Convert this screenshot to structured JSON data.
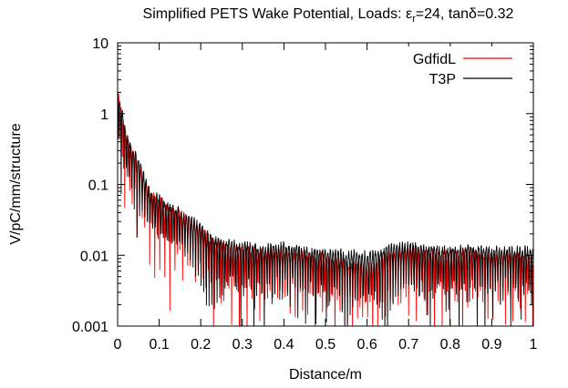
{
  "chart_data": {
    "type": "line",
    "title_parts": {
      "prefix": "Simplified PETS Wake Potential, Loads: ε",
      "eps_sub": "r",
      "eps_value": "=24, tanδ=0.32"
    },
    "xlabel": "Distance/m",
    "ylabel": "V/pC/mm/structure",
    "xlim": [
      0,
      1
    ],
    "ylim": [
      0.001,
      10
    ],
    "yscale": "log",
    "x_ticks": [
      {
        "v": 0,
        "label": "0"
      },
      {
        "v": 0.1,
        "label": "0.1"
      },
      {
        "v": 0.2,
        "label": "0.2"
      },
      {
        "v": 0.3,
        "label": "0.3"
      },
      {
        "v": 0.4,
        "label": "0.4"
      },
      {
        "v": 0.5,
        "label": "0.5"
      },
      {
        "v": 0.6,
        "label": "0.6"
      },
      {
        "v": 0.7,
        "label": "0.7"
      },
      {
        "v": 0.8,
        "label": "0.8"
      },
      {
        "v": 0.9,
        "label": "0.9"
      },
      {
        "v": 1,
        "label": "1"
      }
    ],
    "y_ticks": [
      {
        "v": 0.001,
        "label": "0.001"
      },
      {
        "v": 0.01,
        "label": "0.01"
      },
      {
        "v": 0.1,
        "label": "0.1"
      },
      {
        "v": 1,
        "label": "1"
      },
      {
        "v": 10,
        "label": "10"
      }
    ],
    "legend_position": "top-right",
    "series": [
      {
        "name": "GdfidL",
        "color": "#ff0000",
        "envelope": [
          [
            0.0,
            2.2
          ],
          [
            0.01,
            1.2
          ],
          [
            0.02,
            0.55
          ],
          [
            0.03,
            0.38
          ],
          [
            0.04,
            0.32
          ],
          [
            0.05,
            0.22
          ],
          [
            0.06,
            0.16
          ],
          [
            0.07,
            0.11
          ],
          [
            0.08,
            0.085
          ],
          [
            0.1,
            0.07
          ],
          [
            0.12,
            0.055
          ],
          [
            0.15,
            0.045
          ],
          [
            0.18,
            0.035
          ],
          [
            0.2,
            0.028
          ],
          [
            0.22,
            0.02
          ],
          [
            0.25,
            0.016
          ],
          [
            0.3,
            0.014
          ],
          [
            0.35,
            0.013
          ],
          [
            0.4,
            0.013
          ],
          [
            0.45,
            0.012
          ],
          [
            0.5,
            0.011
          ],
          [
            0.55,
            0.009
          ],
          [
            0.6,
            0.008
          ],
          [
            0.65,
            0.012
          ],
          [
            0.7,
            0.014
          ],
          [
            0.75,
            0.013
          ],
          [
            0.8,
            0.012
          ],
          [
            0.85,
            0.013
          ],
          [
            0.9,
            0.012
          ],
          [
            0.95,
            0.012
          ],
          [
            1.0,
            0.011
          ]
        ]
      },
      {
        "name": "T3P",
        "color": "#000000",
        "envelope": [
          [
            0.0,
            2.4
          ],
          [
            0.01,
            1.3
          ],
          [
            0.02,
            0.6
          ],
          [
            0.03,
            0.4
          ],
          [
            0.04,
            0.35
          ],
          [
            0.05,
            0.25
          ],
          [
            0.06,
            0.18
          ],
          [
            0.07,
            0.12
          ],
          [
            0.08,
            0.09
          ],
          [
            0.1,
            0.075
          ],
          [
            0.12,
            0.06
          ],
          [
            0.15,
            0.048
          ],
          [
            0.18,
            0.036
          ],
          [
            0.2,
            0.03
          ],
          [
            0.22,
            0.022
          ],
          [
            0.25,
            0.018
          ],
          [
            0.3,
            0.016
          ],
          [
            0.35,
            0.015
          ],
          [
            0.4,
            0.016
          ],
          [
            0.45,
            0.014
          ],
          [
            0.5,
            0.013
          ],
          [
            0.55,
            0.012
          ],
          [
            0.6,
            0.012
          ],
          [
            0.65,
            0.015
          ],
          [
            0.7,
            0.016
          ],
          [
            0.75,
            0.015
          ],
          [
            0.8,
            0.014
          ],
          [
            0.85,
            0.015
          ],
          [
            0.9,
            0.014
          ],
          [
            0.95,
            0.014
          ],
          [
            1.0,
            0.014
          ]
        ]
      }
    ]
  }
}
